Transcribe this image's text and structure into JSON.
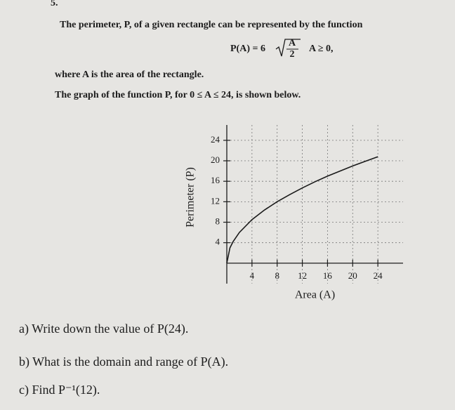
{
  "question_number": "5.",
  "intro": [
    "The perimeter, P, of a given rectangle can be represented by the function"
  ],
  "formula": {
    "lhs": "P(A) = 6",
    "numerator": "A",
    "denominator": "2",
    "condition": "A ≥ 0,"
  },
  "notes": [
    "where A is the area of the rectangle.",
    "The graph of the function P, for 0 ≤ A ≤ 24, is shown below."
  ],
  "chart_data": {
    "type": "line",
    "x": [
      0,
      0.5,
      1,
      2,
      4,
      6,
      8,
      10,
      12,
      14,
      16,
      18,
      20,
      22,
      24
    ],
    "values": [
      0,
      3,
      4.2,
      6,
      8.5,
      10.4,
      12,
      13.4,
      14.7,
      15.9,
      17,
      18,
      19,
      19.9,
      20.8
    ],
    "color": "#1a1a1a",
    "xlim": [
      0,
      28
    ],
    "ylim": [
      -4,
      27
    ],
    "xticks": [
      4,
      8,
      12,
      16,
      20,
      24
    ],
    "yticks": [
      4,
      8,
      12,
      16,
      20,
      24
    ],
    "xlabel": "Area (A)",
    "ylabel": "Perimeter (P)",
    "grid": true
  },
  "parts": [
    "a) Write down the value of P(24).",
    "b) What is the domain and range of P(A).",
    "c) Find P⁻¹(12)."
  ]
}
